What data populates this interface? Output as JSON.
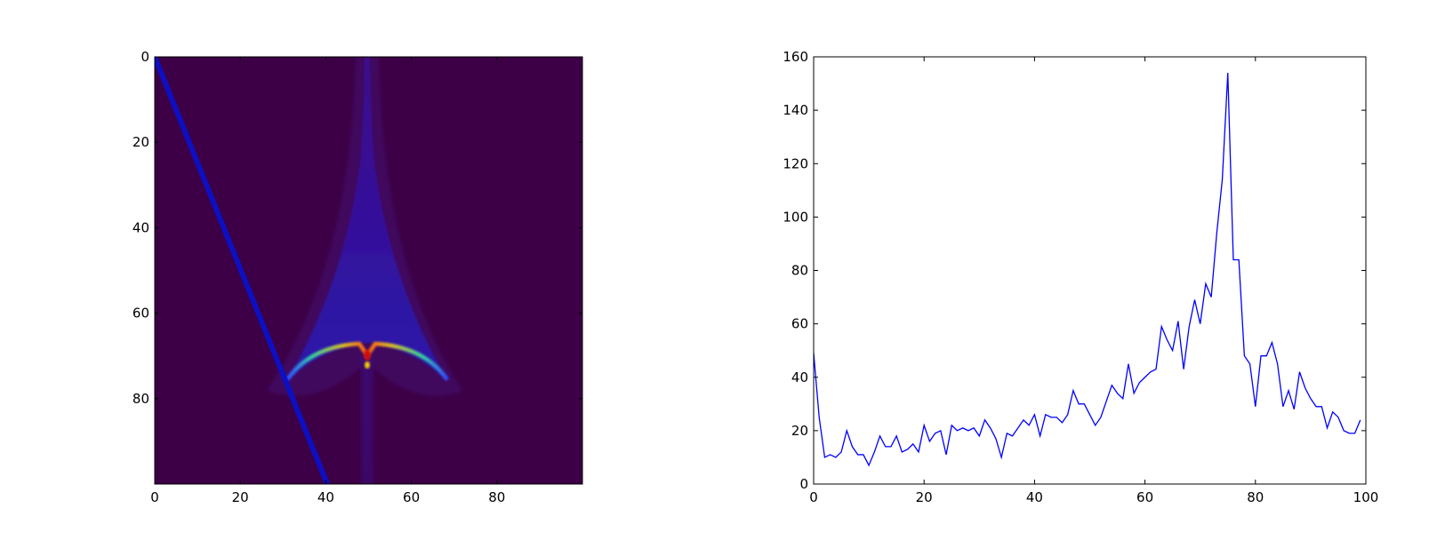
{
  "chart_data": [
    {
      "type": "heatmap",
      "title": "",
      "xlabel": "",
      "ylabel": "",
      "xlim": [
        0,
        100
      ],
      "ylim": [
        100,
        0
      ],
      "x_ticks": [
        0,
        20,
        40,
        60,
        80
      ],
      "y_ticks": [
        0,
        20,
        40,
        60,
        80
      ],
      "colormap": "jet",
      "background_color": "#3d0047",
      "grid": false,
      "features": {
        "diagonal_line": {
          "from": [
            0,
            0
          ],
          "to": [
            40,
            100
          ],
          "color": "#0b10c8"
        },
        "spike_center_x": 50,
        "cusp_peak": [
          50,
          70
        ],
        "arc_tips": [
          [
            31,
            75
          ],
          [
            69,
            75
          ]
        ]
      }
    },
    {
      "type": "line",
      "title": "",
      "xlabel": "",
      "ylabel": "",
      "xlim": [
        0,
        100
      ],
      "ylim": [
        0,
        160
      ],
      "x_ticks": [
        0,
        20,
        40,
        60,
        80,
        100
      ],
      "y_ticks": [
        0,
        20,
        40,
        60,
        80,
        100,
        120,
        140,
        160
      ],
      "grid": false,
      "line_color": "#0000ff",
      "x": [
        0,
        1,
        2,
        3,
        4,
        5,
        6,
        7,
        8,
        9,
        10,
        11,
        12,
        13,
        14,
        15,
        16,
        17,
        18,
        19,
        20,
        21,
        22,
        23,
        24,
        25,
        26,
        27,
        28,
        29,
        30,
        31,
        32,
        33,
        34,
        35,
        36,
        37,
        38,
        39,
        40,
        41,
        42,
        43,
        44,
        45,
        46,
        47,
        48,
        49,
        50,
        51,
        52,
        53,
        54,
        55,
        56,
        57,
        58,
        59,
        60,
        61,
        62,
        63,
        64,
        65,
        66,
        67,
        68,
        69,
        70,
        71,
        72,
        73,
        74,
        75,
        76,
        77,
        78,
        79,
        80,
        81,
        82,
        83,
        84,
        85,
        86,
        87,
        88,
        89,
        90,
        91,
        92,
        93,
        94,
        95,
        96,
        97,
        98,
        99
      ],
      "values": [
        49,
        25,
        10,
        11,
        10,
        12,
        20,
        14,
        11,
        11,
        7,
        12,
        18,
        14,
        14,
        18,
        12,
        13,
        15,
        12,
        22,
        16,
        19,
        20,
        11,
        22,
        20,
        21,
        20,
        21,
        18,
        24,
        21,
        17,
        10,
        19,
        18,
        21,
        24,
        22,
        26,
        18,
        26,
        25,
        25,
        23,
        26,
        35,
        30,
        30,
        26,
        22,
        25,
        31,
        37,
        34,
        32,
        45,
        34,
        38,
        40,
        42,
        43,
        59,
        54,
        50,
        61,
        43,
        59,
        69,
        60,
        75,
        70,
        94,
        114,
        154,
        84,
        84,
        48,
        45,
        29,
        48,
        48,
        53,
        45,
        29,
        35,
        28,
        42,
        36,
        32,
        29,
        29,
        21,
        27,
        25,
        20,
        19,
        19,
        24
      ]
    }
  ]
}
